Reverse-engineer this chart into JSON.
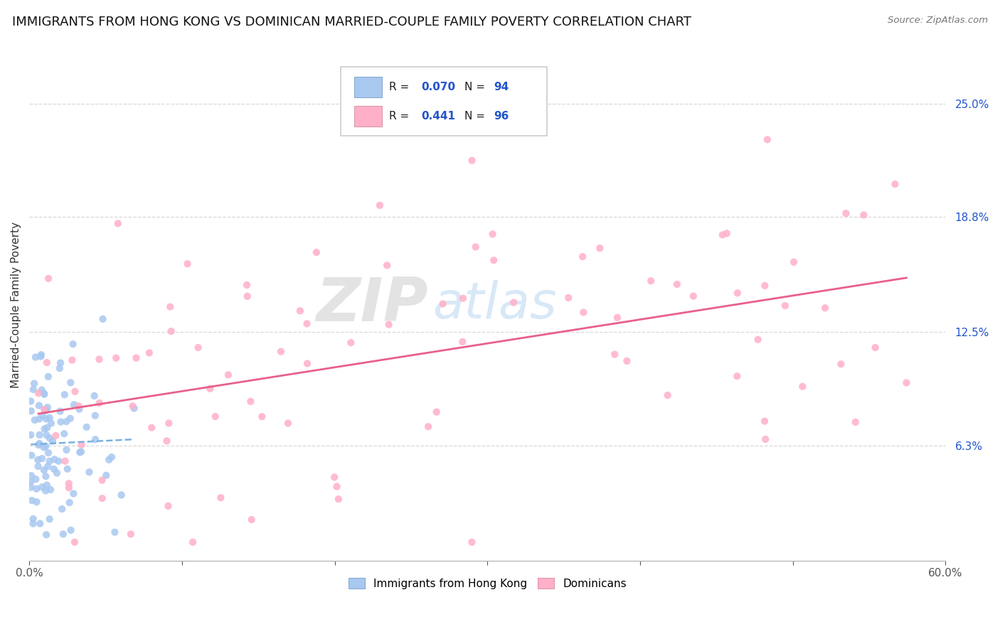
{
  "title": "IMMIGRANTS FROM HONG KONG VS DOMINICAN MARRIED-COUPLE FAMILY POVERTY CORRELATION CHART",
  "source": "Source: ZipAtlas.com",
  "ylabel": "Married-Couple Family Poverty",
  "xlim": [
    0.0,
    0.6
  ],
  "ylim": [
    0.0,
    0.28
  ],
  "ytick_right_vals": [
    0.063,
    0.125,
    0.188,
    0.25
  ],
  "ytick_right_labels": [
    "6.3%",
    "12.5%",
    "18.8%",
    "25.0%"
  ],
  "hk_R": 0.07,
  "hk_N": 94,
  "dom_R": 0.441,
  "dom_N": 96,
  "hk_color": "#a8c8f0",
  "dom_color": "#ffb0c8",
  "hk_line_color": "#7ab0e0",
  "dom_line_color": "#e8608a",
  "legend_labels": [
    "Immigrants from Hong Kong",
    "Dominicans"
  ],
  "background_color": "#ffffff",
  "grid_color": "#d8d8d8",
  "title_fontsize": 13,
  "axis_label_fontsize": 11,
  "tick_fontsize": 11,
  "legend_fontsize": 11,
  "r_n_color": "#2255cc",
  "right_tick_color": "#2255cc"
}
